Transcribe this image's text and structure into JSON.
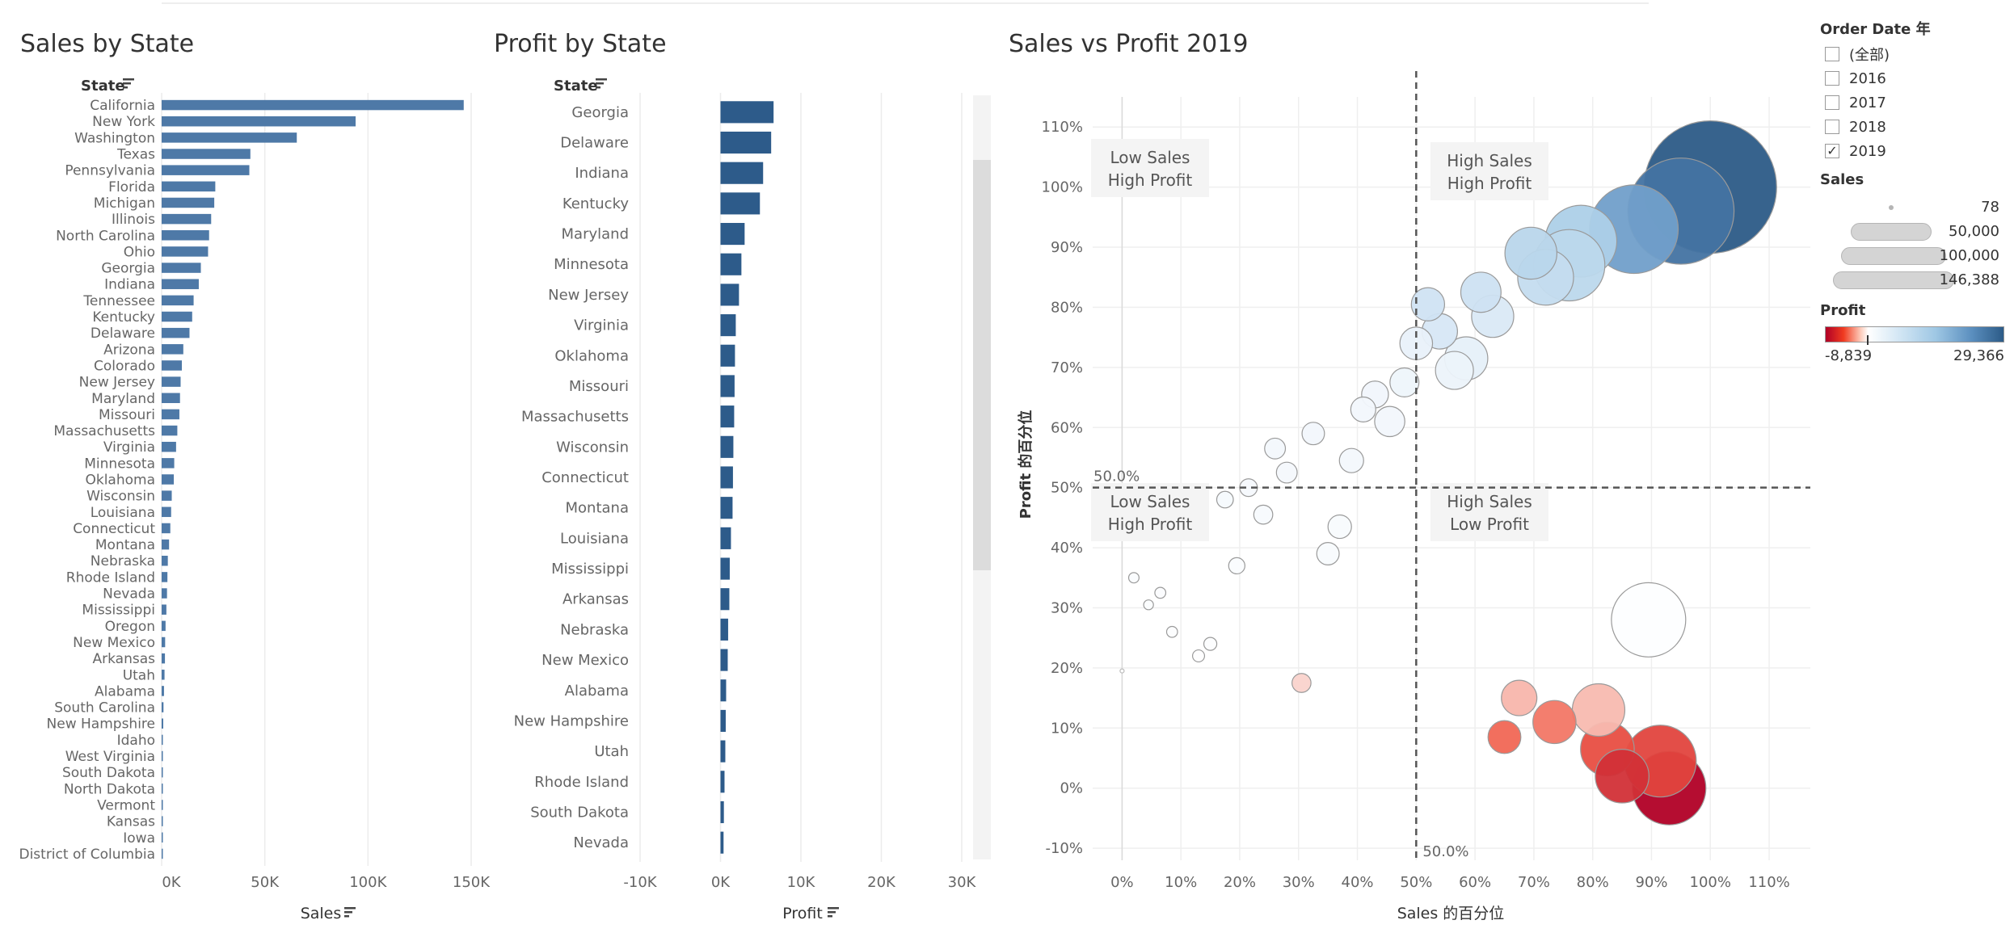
{
  "chart_data": [
    {
      "type": "bar",
      "orientation": "horizontal",
      "title": "Sales by State",
      "category_header": "State",
      "xlabel": "Sales",
      "xlim": [
        0,
        150000
      ],
      "xticks": [
        "0K",
        "50K",
        "100K",
        "150K"
      ],
      "color": "#4e79a7",
      "categories": [
        "California",
        "New York",
        "Washington",
        "Texas",
        "Pennsylvania",
        "Florida",
        "Michigan",
        "Illinois",
        "North Carolina",
        "Ohio",
        "Georgia",
        "Indiana",
        "Tennessee",
        "Kentucky",
        "Delaware",
        "Arizona",
        "Colorado",
        "New Jersey",
        "Maryland",
        "Missouri",
        "Massachusetts",
        "Virginia",
        "Minnesota",
        "Oklahoma",
        "Wisconsin",
        "Louisiana",
        "Connecticut",
        "Montana",
        "Nebraska",
        "Rhode Island",
        "Nevada",
        "Mississippi",
        "Oregon",
        "New Mexico",
        "Arkansas",
        "Utah",
        "Alabama",
        "South Carolina",
        "New Hampshire",
        "Idaho",
        "West Virginia",
        "South Dakota",
        "North Dakota",
        "Vermont",
        "Kansas",
        "Iowa",
        "District of Columbia"
      ],
      "values": [
        146388,
        94000,
        65500,
        43000,
        42500,
        26000,
        25500,
        24000,
        23000,
        22500,
        19000,
        18000,
        15500,
        14800,
        13500,
        10500,
        9800,
        9200,
        8900,
        8600,
        7600,
        7000,
        6100,
        5900,
        4900,
        4600,
        4200,
        3600,
        3000,
        2800,
        2600,
        2300,
        1900,
        1700,
        1600,
        1400,
        1150,
        900,
        780,
        540,
        440,
        360,
        260,
        180,
        150,
        120,
        78
      ]
    },
    {
      "type": "bar",
      "orientation": "horizontal",
      "title": "Profit by State",
      "category_header": "State",
      "xlabel": "Profit",
      "xlim": [
        -10000,
        30000
      ],
      "xticks": [
        "-10K",
        "0K",
        "10K",
        "20K",
        "30K"
      ],
      "color": "#2d5b8a",
      "categories": [
        "Georgia",
        "Delaware",
        "Indiana",
        "Kentucky",
        "Maryland",
        "Minnesota",
        "New Jersey",
        "Virginia",
        "Oklahoma",
        "Missouri",
        "Massachusetts",
        "Wisconsin",
        "Connecticut",
        "Montana",
        "Louisiana",
        "Mississippi",
        "Arkansas",
        "Nebraska",
        "New Mexico",
        "Alabama",
        "New Hampshire",
        "Utah",
        "Rhode Island",
        "South Dakota",
        "Nevada"
      ],
      "values": [
        6600,
        6300,
        5300,
        4900,
        3000,
        2600,
        2300,
        1900,
        1800,
        1750,
        1700,
        1600,
        1550,
        1500,
        1300,
        1150,
        1100,
        950,
        900,
        700,
        650,
        600,
        500,
        420,
        380
      ]
    },
    {
      "type": "scatter",
      "subtype": "bubble",
      "title": "Sales vs Profit 2019",
      "xlabel": "Sales 的百分位",
      "ylabel": "Profit 的百分位",
      "xlim": [
        -5,
        117
      ],
      "ylim": [
        -12,
        115
      ],
      "xticks": [
        "0%",
        "10%",
        "20%",
        "30%",
        "40%",
        "50%",
        "60%",
        "70%",
        "80%",
        "90%",
        "100%",
        "110%"
      ],
      "yticks": [
        "-10%",
        "0%",
        "10%",
        "20%",
        "30%",
        "40%",
        "50%",
        "60%",
        "70%",
        "80%",
        "90%",
        "100%",
        "110%"
      ],
      "reference_lines": [
        {
          "axis": "x",
          "value": 50,
          "label": "50.0%"
        },
        {
          "axis": "y",
          "value": 50,
          "label": "50.0%"
        }
      ],
      "quadrant_labels": [
        {
          "text": [
            "Low Sales",
            "High Profit"
          ]
        },
        {
          "text": [
            "High Sales",
            "High Profit"
          ]
        },
        {
          "text": [
            "Low Sales",
            "High Profit"
          ]
        },
        {
          "text": [
            "High Sales",
            "Low Profit"
          ]
        }
      ],
      "points": [
        {
          "x": 100,
          "y": 100,
          "sales": 146388,
          "profit": 29366
        },
        {
          "x": 95,
          "y": 96,
          "sales": 94000,
          "profit": 25000
        },
        {
          "x": 87,
          "y": 93,
          "sales": 65500,
          "profit": 18000
        },
        {
          "x": 78,
          "y": 91,
          "sales": 43000,
          "profit": 11000
        },
        {
          "x": 69.5,
          "y": 89,
          "sales": 22500,
          "profit": 9500
        },
        {
          "x": 76,
          "y": 87,
          "sales": 42500,
          "profit": 9000
        },
        {
          "x": 72,
          "y": 85,
          "sales": 26000,
          "profit": 8000
        },
        {
          "x": 61,
          "y": 82.5,
          "sales": 13500,
          "profit": 6600
        },
        {
          "x": 63,
          "y": 78.5,
          "sales": 14800,
          "profit": 4900
        },
        {
          "x": 52,
          "y": 80.5,
          "sales": 9200,
          "profit": 6300
        },
        {
          "x": 54,
          "y": 76,
          "sales": 10500,
          "profit": 5300
        },
        {
          "x": 50,
          "y": 74,
          "sales": 8900,
          "profit": 3000
        },
        {
          "x": 58.5,
          "y": 71.5,
          "sales": 15500,
          "profit": 3300
        },
        {
          "x": 56.5,
          "y": 69.5,
          "sales": 12000,
          "profit": 2600
        },
        {
          "x": 48,
          "y": 67.5,
          "sales": 7000,
          "profit": 2300
        },
        {
          "x": 43,
          "y": 65.5,
          "sales": 6000,
          "profit": 1900
        },
        {
          "x": 41,
          "y": 63,
          "sales": 5200,
          "profit": 1800
        },
        {
          "x": 45.5,
          "y": 61,
          "sales": 7600,
          "profit": 1750
        },
        {
          "x": 32.5,
          "y": 59,
          "sales": 4200,
          "profit": 1700
        },
        {
          "x": 26,
          "y": 56.5,
          "sales": 3600,
          "profit": 1600
        },
        {
          "x": 39,
          "y": 54.5,
          "sales": 4900,
          "profit": 1550
        },
        {
          "x": 28,
          "y": 52.5,
          "sales": 3600,
          "profit": 1500
        },
        {
          "x": 21.5,
          "y": 50,
          "sales": 2600,
          "profit": 1300
        },
        {
          "x": 17.5,
          "y": 48,
          "sales": 2300,
          "profit": 1150
        },
        {
          "x": 24,
          "y": 45.5,
          "sales": 3000,
          "profit": 1100
        },
        {
          "x": 37,
          "y": 43.5,
          "sales": 4600,
          "profit": 950
        },
        {
          "x": 35,
          "y": 39,
          "sales": 4200,
          "profit": 900
        },
        {
          "x": 19.5,
          "y": 37,
          "sales": 2200,
          "profit": 700
        },
        {
          "x": 2,
          "y": 35,
          "sales": 900,
          "profit": 650
        },
        {
          "x": 6.5,
          "y": 32.5,
          "sales": 1000,
          "profit": 600
        },
        {
          "x": 4.5,
          "y": 30.5,
          "sales": 800,
          "profit": 500
        },
        {
          "x": 8.5,
          "y": 26,
          "sales": 1000,
          "profit": 420
        },
        {
          "x": 15,
          "y": 24,
          "sales": 1400,
          "profit": 380
        },
        {
          "x": 13,
          "y": 22,
          "sales": 1200,
          "profit": 200
        },
        {
          "x": 0,
          "y": 19.5,
          "sales": 78,
          "profit": 50
        },
        {
          "x": 30.5,
          "y": 17.5,
          "sales": 3000,
          "profit": -600
        },
        {
          "x": 89.5,
          "y": 28,
          "sales": 46000,
          "profit": 250
        },
        {
          "x": 67.5,
          "y": 15,
          "sales": 10500,
          "profit": -1500
        },
        {
          "x": 81,
          "y": 13,
          "sales": 23000,
          "profit": -1400
        },
        {
          "x": 73.5,
          "y": 11,
          "sales": 15500,
          "profit": -3500
        },
        {
          "x": 65,
          "y": 8.5,
          "sales": 9000,
          "profit": -4000
        },
        {
          "x": 82.5,
          "y": 6.5,
          "sales": 24000,
          "profit": -5000
        },
        {
          "x": 91.5,
          "y": 4.5,
          "sales": 43000,
          "profit": -5500
        },
        {
          "x": 85,
          "y": 2,
          "sales": 24000,
          "profit": -6500
        },
        {
          "x": 93,
          "y": 0,
          "sales": 45000,
          "profit": -8839
        }
      ]
    }
  ],
  "filters": {
    "order_date": {
      "title": "Order Date 年",
      "options": [
        {
          "label": "(全部)",
          "checked": false
        },
        {
          "label": "2016",
          "checked": false
        },
        {
          "label": "2017",
          "checked": false
        },
        {
          "label": "2018",
          "checked": false
        },
        {
          "label": "2019",
          "checked": true
        }
      ]
    },
    "sales_legend": {
      "title": "Sales",
      "entries": [
        "78",
        "50,000",
        "100,000",
        "146,388"
      ]
    },
    "profit_legend": {
      "title": "Profit",
      "min": "-8,839",
      "max": "29,366",
      "colors": {
        "low": "#b10026",
        "mid": "#ffffff",
        "high": "#2c5b87"
      }
    }
  }
}
